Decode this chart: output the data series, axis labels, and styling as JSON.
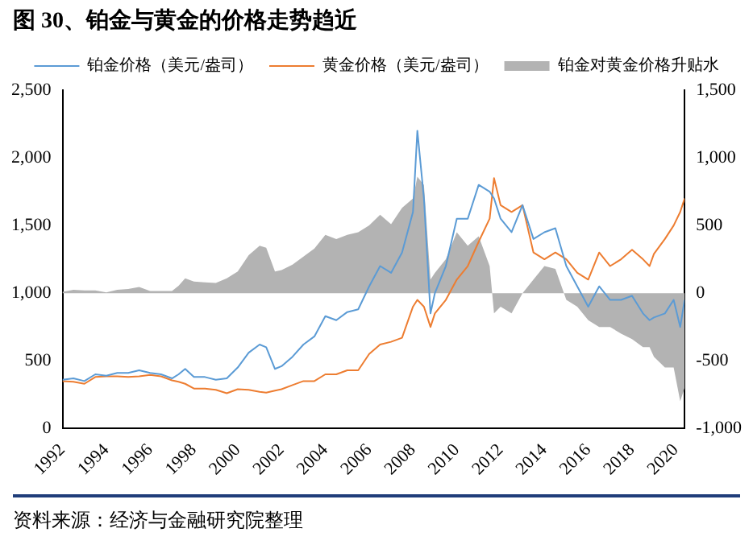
{
  "chart_data": {
    "type": "line",
    "title": "图 30、铂金与黄金的价格走势趋近",
    "annotations": [
      "资料来源：经济与金融研究院整理"
    ],
    "x": [
      1992.0,
      1992.5,
      1993.0,
      1993.5,
      1994.0,
      1994.5,
      1995.0,
      1995.5,
      1996.0,
      1996.5,
      1997.0,
      1997.3,
      1997.6,
      1998.0,
      1998.5,
      1999.0,
      1999.5,
      2000.0,
      2000.5,
      2001.0,
      2001.3,
      2001.7,
      2002.0,
      2002.5,
      2003.0,
      2003.5,
      2004.0,
      2004.5,
      2005.0,
      2005.5,
      2006.0,
      2006.5,
      2007.0,
      2007.5,
      2008.0,
      2008.2,
      2008.5,
      2008.8,
      2009.0,
      2009.5,
      2010.0,
      2010.5,
      2011.0,
      2011.5,
      2011.7,
      2012.0,
      2012.5,
      2013.0,
      2013.5,
      2014.0,
      2014.5,
      2015.0,
      2015.5,
      2016.0,
      2016.5,
      2017.0,
      2017.5,
      2018.0,
      2018.5,
      2018.8,
      2019.0,
      2019.5,
      2019.9,
      2020.2,
      2020.4
    ],
    "series": [
      {
        "name": "铂金对黄金价格升贴水",
        "type": "area",
        "axis": "y2",
        "color": "#b3b3b3",
        "values": [
          10,
          25,
          20,
          20,
          5,
          25,
          30,
          45,
          15,
          15,
          15,
          55,
          110,
          85,
          80,
          75,
          110,
          160,
          280,
          350,
          335,
          160,
          170,
          210,
          270,
          330,
          430,
          400,
          430,
          450,
          500,
          580,
          510,
          630,
          700,
          860,
          800,
          100,
          150,
          250,
          450,
          350,
          420,
          200,
          -150,
          -100,
          -150,
          0,
          100,
          200,
          180,
          -50,
          -100,
          -200,
          -250,
          -250,
          -300,
          -340,
          -400,
          -400,
          -470,
          -550,
          -550,
          -800,
          -700
        ]
      },
      {
        "name": "铂金价格（美元/盎司）",
        "type": "line",
        "color": "#5b9bd5",
        "values": [
          360,
          370,
          350,
          400,
          390,
          410,
          410,
          430,
          410,
          400,
          370,
          400,
          440,
          380,
          380,
          360,
          370,
          450,
          560,
          620,
          600,
          440,
          460,
          530,
          620,
          680,
          830,
          800,
          860,
          880,
          1050,
          1200,
          1150,
          1300,
          1600,
          2200,
          1700,
          850,
          1000,
          1200,
          1550,
          1550,
          1800,
          1750,
          1700,
          1550,
          1450,
          1650,
          1400,
          1450,
          1480,
          1200,
          1050,
          900,
          1050,
          950,
          950,
          980,
          850,
          800,
          820,
          850,
          950,
          750,
          950
        ]
      },
      {
        "name": "黄金价格（美元/盎司）",
        "type": "line",
        "color": "#ed7d31",
        "values": [
          350,
          345,
          330,
          380,
          385,
          385,
          380,
          385,
          395,
          385,
          355,
          345,
          330,
          295,
          295,
          285,
          260,
          290,
          285,
          270,
          265,
          280,
          290,
          320,
          350,
          350,
          400,
          400,
          430,
          430,
          550,
          620,
          640,
          670,
          900,
          950,
          900,
          750,
          850,
          950,
          1100,
          1200,
          1380,
          1550,
          1850,
          1650,
          1600,
          1650,
          1300,
          1250,
          1300,
          1250,
          1150,
          1100,
          1300,
          1200,
          1250,
          1320,
          1250,
          1200,
          1290,
          1400,
          1500,
          1600,
          1700
        ]
      }
    ],
    "xlim": [
      1992,
      2020.4
    ],
    "xticks": [
      1992,
      1994,
      1996,
      1998,
      2000,
      2002,
      2004,
      2006,
      2008,
      2010,
      2012,
      2014,
      2016,
      2018,
      2020
    ],
    "ylim": [
      0,
      2500
    ],
    "yticks": [
      0,
      {
        "value": 500,
        "label": "500"
      },
      {
        "value": 1000,
        "label": "1,000"
      },
      {
        "value": 1500,
        "label": "1,500"
      },
      {
        "value": 2000,
        "label": "2,000"
      },
      {
        "value": 2500,
        "label": "2,500"
      }
    ],
    "y2lim": [
      -1000,
      1500
    ],
    "y2ticks": [
      {
        "value": -1000,
        "label": "-1,000"
      },
      {
        "value": -500,
        "label": "-500"
      },
      0,
      {
        "value": 500,
        "label": "500"
      },
      {
        "value": 1000,
        "label": "1,000"
      },
      {
        "value": 1500,
        "label": "1,500"
      }
    ],
    "legend": "top"
  }
}
